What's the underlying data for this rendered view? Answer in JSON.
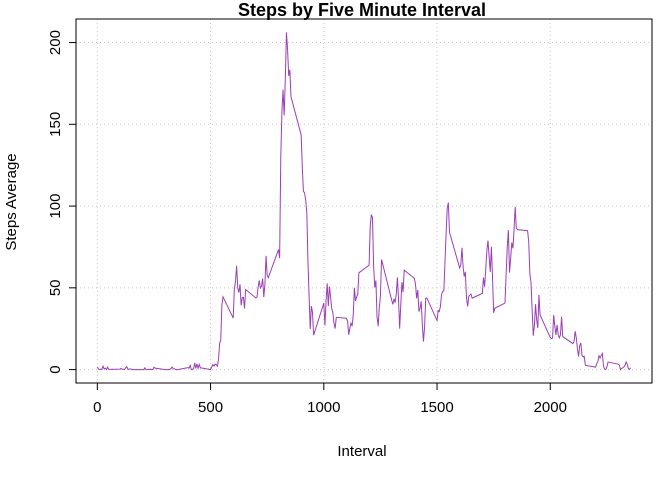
{
  "chart_data": {
    "type": "line",
    "title": "Steps by Five Minute Interval",
    "x_label": "Interval",
    "y_label": "Steps Average",
    "x": [
      0,
      5,
      10,
      15,
      20,
      25,
      30,
      35,
      40,
      45,
      50,
      55,
      100,
      105,
      110,
      115,
      120,
      125,
      130,
      135,
      140,
      145,
      150,
      155,
      200,
      205,
      210,
      215,
      220,
      225,
      230,
      235,
      240,
      245,
      250,
      255,
      300,
      305,
      310,
      315,
      320,
      325,
      330,
      335,
      340,
      345,
      350,
      355,
      400,
      405,
      410,
      415,
      420,
      425,
      430,
      435,
      440,
      445,
      450,
      455,
      500,
      505,
      510,
      515,
      520,
      525,
      530,
      535,
      540,
      545,
      550,
      555,
      600,
      605,
      610,
      615,
      620,
      625,
      630,
      635,
      640,
      645,
      650,
      655,
      700,
      705,
      710,
      715,
      720,
      725,
      730,
      735,
      740,
      745,
      750,
      755,
      800,
      805,
      810,
      815,
      820,
      825,
      830,
      835,
      840,
      845,
      850,
      855,
      900,
      905,
      910,
      915,
      920,
      925,
      930,
      935,
      940,
      945,
      950,
      955,
      1000,
      1005,
      1010,
      1015,
      1020,
      1025,
      1030,
      1035,
      1040,
      1045,
      1050,
      1055,
      1100,
      1105,
      1110,
      1115,
      1120,
      1125,
      1130,
      1135,
      1140,
      1145,
      1150,
      1155,
      1200,
      1205,
      1210,
      1215,
      1220,
      1225,
      1230,
      1235,
      1240,
      1245,
      1250,
      1255,
      1300,
      1305,
      1310,
      1315,
      1320,
      1325,
      1330,
      1335,
      1340,
      1345,
      1350,
      1355,
      1400,
      1405,
      1410,
      1415,
      1420,
      1425,
      1430,
      1435,
      1440,
      1445,
      1450,
      1455,
      1500,
      1505,
      1510,
      1515,
      1520,
      1525,
      1530,
      1535,
      1540,
      1545,
      1550,
      1555,
      1600,
      1605,
      1610,
      1615,
      1620,
      1625,
      1630,
      1635,
      1640,
      1645,
      1650,
      1655,
      1700,
      1705,
      1710,
      1715,
      1720,
      1725,
      1730,
      1735,
      1740,
      1745,
      1750,
      1755,
      1800,
      1805,
      1810,
      1815,
      1820,
      1825,
      1830,
      1835,
      1840,
      1845,
      1850,
      1855,
      1900,
      1905,
      1910,
      1915,
      1920,
      1925,
      1930,
      1935,
      1940,
      1945,
      1950,
      1955,
      2000,
      2005,
      2010,
      2015,
      2020,
      2025,
      2030,
      2035,
      2040,
      2045,
      2050,
      2055,
      2100,
      2105,
      2110,
      2115,
      2120,
      2125,
      2130,
      2135,
      2140,
      2145,
      2150,
      2155,
      2200,
      2205,
      2210,
      2215,
      2220,
      2225,
      2230,
      2235,
      2240,
      2245,
      2250,
      2255,
      2300,
      2305,
      2310,
      2315,
      2320,
      2325,
      2330,
      2335,
      2340,
      2345,
      2350,
      2355
    ],
    "values": [
      1.7,
      0.3,
      0.1,
      0.2,
      0.1,
      2.1,
      0.5,
      0.9,
      0,
      1.5,
      0.3,
      0.1,
      0.3,
      0.7,
      0.2,
      0.3,
      0,
      1.1,
      1.8,
      0.2,
      0.2,
      0.4,
      0.3,
      0,
      0,
      0,
      1.1,
      0,
      0,
      0.1,
      0,
      0.2,
      0,
      0,
      1.5,
      0.9,
      0,
      0,
      0,
      0,
      0.2,
      0.6,
      1.6,
      0.6,
      0.5,
      0.1,
      0,
      0,
      1.2,
      0.9,
      2.6,
      0,
      0.3,
      0.4,
      4.1,
      0.7,
      3.5,
      0.8,
      3.1,
      1.1,
      0,
      1.6,
      3,
      2.2,
      3.3,
      3,
      2.1,
      6.1,
      16,
      18.3,
      39.5,
      44.5,
      31.5,
      49.3,
      53.8,
      63.5,
      50,
      47.1,
      52.2,
      39.3,
      44,
      44.2,
      37.4,
      49,
      43.8,
      44.4,
      50.5,
      54.5,
      49.9,
      51,
      55.7,
      44.3,
      52.3,
      69.5,
      57.8,
      56.2,
      73.4,
      68.2,
      129.4,
      157.5,
      171.2,
      155.4,
      177.3,
      206.2,
      195.9,
      179.6,
      183.4,
      167,
      143.5,
      124,
      109.1,
      108.1,
      103.7,
      96,
      66.2,
      45.2,
      24.8,
      38.8,
      35,
      21.1,
      40.6,
      27,
      42.4,
      52.7,
      38.9,
      50.8,
      44.3,
      37.4,
      34.7,
      28.3,
      25.1,
      31.9,
      31.4,
      29.7,
      21.3,
      25.5,
      28.4,
      26.5,
      33.4,
      50,
      42,
      44.6,
      46,
      59.2,
      63.9,
      87.7,
      94.8,
      92.8,
      63.4,
      50.2,
      54.5,
      32.4,
      26.5,
      37.7,
      45.1,
      67.3,
      42.3,
      39.9,
      43.3,
      41,
      46.2,
      56.4,
      42.8,
      25.1,
      40,
      53.5,
      47.3,
      60.8,
      55.8,
      52,
      43.6,
      48.7,
      35.5,
      37.5,
      41.8,
      27.5,
      17.1,
      26.1,
      43.6,
      43.8,
      30,
      36.1,
      35.5,
      38.8,
      46,
      47.8,
      48.1,
      65.3,
      82.9,
      98.7,
      102.1,
      84,
      62.1,
      64.1,
      74.5,
      63.2,
      56.9,
      59.8,
      43.9,
      38.6,
      44.7,
      45.5,
      46.2,
      43.7,
      46.6,
      56.3,
      50.7,
      61.2,
      72.7,
      78.9,
      68.9,
      59.7,
      75.1,
      56.5,
      34.8,
      37.5,
      40.7,
      58,
      74.7,
      85.3,
      59.3,
      67.8,
      77.7,
      74.2,
      85.3,
      99.5,
      86.6,
      85.6,
      84.9,
      77.8,
      58,
      53.4,
      36.3,
      20.7,
      27.4,
      40,
      30.2,
      25.5,
      45.7,
      33.5,
      19.6,
      19,
      19.3,
      33.3,
      26.8,
      21.2,
      27.3,
      21.3,
      19.5,
      21.3,
      32.3,
      20.2,
      15.9,
      17.2,
      23.5,
      19.2,
      12.5,
      8,
      14.7,
      16.3,
      8.7,
      7.8,
      8.1,
      2.6,
      1.5,
      3.7,
      4.8,
      8.5,
      7.1,
      8.7,
      9.8,
      2.2,
      0.3,
      0.1,
      1.6,
      4.6,
      3.3,
      2.8,
      0,
      0.8,
      1,
      1.6,
      2.6,
      4.7,
      3.3,
      0.6,
      0.2,
      1.1
    ],
    "color": "#9b3fb5",
    "xlim": [
      -94.2,
      2449.2
    ],
    "xticks": [
      0,
      500,
      1000,
      1500,
      2000
    ],
    "ylim": [
      -8.2,
      214.4
    ],
    "yticks": [
      0,
      50,
      100,
      150,
      200
    ],
    "grid": true
  }
}
